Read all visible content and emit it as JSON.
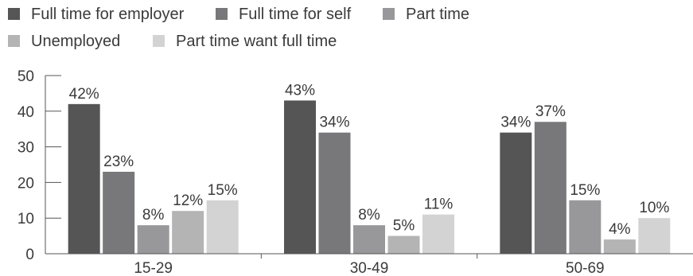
{
  "chart_data": {
    "type": "bar",
    "categories": [
      "15-29",
      "30-49",
      "50-69"
    ],
    "series": [
      {
        "name": "Full time for employer",
        "values": [
          42,
          43,
          34
        ],
        "labels": [
          "42%",
          "43%",
          "34%"
        ],
        "color": "#555556"
      },
      {
        "name": "Full time for self",
        "values": [
          23,
          34,
          37
        ],
        "labels": [
          "23%",
          "34%",
          "37%"
        ],
        "color": "#78787a"
      },
      {
        "name": "Part time",
        "values": [
          8,
          8,
          15
        ],
        "labels": [
          "8%",
          "8%",
          "15%"
        ],
        "color": "#98989a"
      },
      {
        "name": "Unemployed",
        "values": [
          12,
          5,
          4
        ],
        "labels": [
          "12%",
          "5%",
          "4%"
        ],
        "color": "#b4b4b5"
      },
      {
        "name": "Part time want full time",
        "values": [
          15,
          11,
          10
        ],
        "labels": [
          "15%",
          "11%",
          "10%"
        ],
        "color": "#d3d3d4"
      }
    ],
    "ylim": [
      0,
      50
    ],
    "yticks": [
      0,
      10,
      20,
      30,
      40,
      50
    ],
    "grid": false,
    "legend_position": "top-left"
  }
}
